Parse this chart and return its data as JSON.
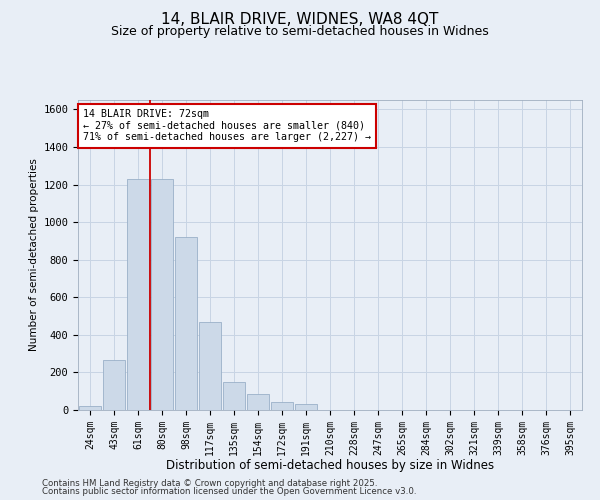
{
  "title_line1": "14, BLAIR DRIVE, WIDNES, WA8 4QT",
  "title_line2": "Size of property relative to semi-detached houses in Widnes",
  "xlabel": "Distribution of semi-detached houses by size in Widnes",
  "ylabel": "Number of semi-detached properties",
  "categories": [
    "24sqm",
    "43sqm",
    "61sqm",
    "80sqm",
    "98sqm",
    "117sqm",
    "135sqm",
    "154sqm",
    "172sqm",
    "191sqm",
    "210sqm",
    "228sqm",
    "247sqm",
    "265sqm",
    "284sqm",
    "302sqm",
    "321sqm",
    "339sqm",
    "358sqm",
    "376sqm",
    "395sqm"
  ],
  "values": [
    22,
    265,
    1230,
    1230,
    920,
    470,
    150,
    85,
    40,
    30,
    0,
    0,
    0,
    0,
    0,
    0,
    0,
    0,
    0,
    0,
    0
  ],
  "bar_color": "#ccd9e8",
  "bar_edge_color": "#9ab0c8",
  "grid_color": "#c8d4e4",
  "background_color": "#e8eef6",
  "red_line_index": 2.5,
  "annotation_text": "14 BLAIR DRIVE: 72sqm\n← 27% of semi-detached houses are smaller (840)\n71% of semi-detached houses are larger (2,227) →",
  "annotation_box_facecolor": "#ffffff",
  "annotation_box_edgecolor": "#cc0000",
  "ylim": [
    0,
    1650
  ],
  "yticks": [
    0,
    200,
    400,
    600,
    800,
    1000,
    1200,
    1400,
    1600
  ],
  "footnote_line1": "Contains HM Land Registry data © Crown copyright and database right 2025.",
  "footnote_line2": "Contains public sector information licensed under the Open Government Licence v3.0."
}
